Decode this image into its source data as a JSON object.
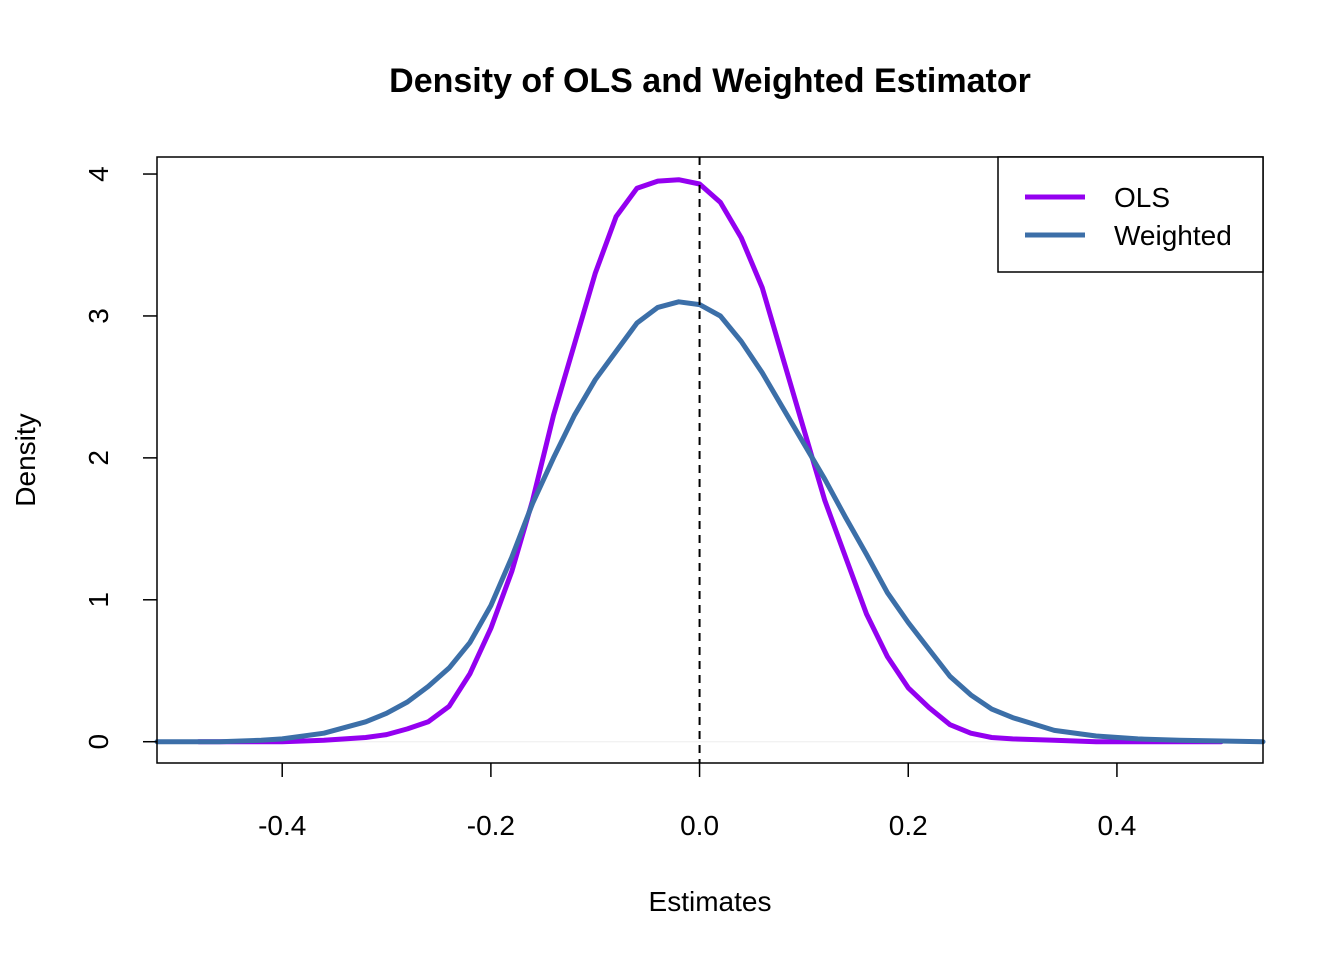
{
  "chart_data": {
    "type": "line",
    "title": "Density of OLS and Weighted Estimator",
    "xlabel": "Estimates",
    "ylabel": "Density",
    "xlim": [
      -0.52,
      0.54
    ],
    "ylim": [
      -0.15,
      4.12
    ],
    "x_ticks": [
      -0.4,
      -0.2,
      0.0,
      0.2,
      0.4
    ],
    "x_tick_labels": [
      "-0.4",
      "-0.2",
      "0.0",
      "0.2",
      "0.4"
    ],
    "y_ticks": [
      0,
      1,
      2,
      3,
      4
    ],
    "y_tick_labels": [
      "0",
      "1",
      "2",
      "3",
      "4"
    ],
    "grid": false,
    "legend_position": "top-right",
    "reference_line": {
      "x": 0.0,
      "style": "dashed",
      "color": "#000000"
    },
    "series": [
      {
        "name": "OLS",
        "color": "#9400F0",
        "x": [
          -0.48,
          -0.44,
          -0.4,
          -0.36,
          -0.34,
          -0.32,
          -0.3,
          -0.28,
          -0.26,
          -0.24,
          -0.22,
          -0.2,
          -0.18,
          -0.16,
          -0.14,
          -0.12,
          -0.1,
          -0.08,
          -0.06,
          -0.04,
          -0.02,
          0.0,
          0.02,
          0.04,
          0.06,
          0.08,
          0.1,
          0.12,
          0.14,
          0.16,
          0.18,
          0.2,
          0.22,
          0.24,
          0.26,
          0.28,
          0.3,
          0.34,
          0.38,
          0.42,
          0.46,
          0.5
        ],
        "y": [
          0.0,
          0.0,
          0.0,
          0.01,
          0.02,
          0.03,
          0.05,
          0.09,
          0.14,
          0.25,
          0.48,
          0.8,
          1.2,
          1.7,
          2.3,
          2.8,
          3.3,
          3.7,
          3.9,
          3.95,
          3.96,
          3.93,
          3.8,
          3.55,
          3.2,
          2.7,
          2.2,
          1.7,
          1.3,
          0.9,
          0.6,
          0.38,
          0.24,
          0.12,
          0.06,
          0.03,
          0.02,
          0.01,
          0.0,
          0.0,
          0.0,
          0.0
        ]
      },
      {
        "name": "Weighted",
        "color": "#3C6FA8",
        "x": [
          -0.52,
          -0.46,
          -0.42,
          -0.4,
          -0.36,
          -0.32,
          -0.3,
          -0.28,
          -0.26,
          -0.24,
          -0.22,
          -0.2,
          -0.18,
          -0.16,
          -0.14,
          -0.12,
          -0.1,
          -0.08,
          -0.06,
          -0.04,
          -0.02,
          0.0,
          0.02,
          0.04,
          0.06,
          0.08,
          0.1,
          0.12,
          0.14,
          0.16,
          0.18,
          0.2,
          0.22,
          0.24,
          0.26,
          0.28,
          0.3,
          0.34,
          0.38,
          0.42,
          0.46,
          0.54
        ],
        "y": [
          0.0,
          0.0,
          0.01,
          0.02,
          0.06,
          0.14,
          0.2,
          0.28,
          0.39,
          0.52,
          0.7,
          0.96,
          1.3,
          1.68,
          2.0,
          2.3,
          2.55,
          2.75,
          2.95,
          3.06,
          3.1,
          3.08,
          3.0,
          2.82,
          2.6,
          2.35,
          2.1,
          1.85,
          1.58,
          1.32,
          1.05,
          0.84,
          0.65,
          0.46,
          0.33,
          0.23,
          0.17,
          0.08,
          0.04,
          0.02,
          0.01,
          0.0
        ]
      }
    ]
  }
}
